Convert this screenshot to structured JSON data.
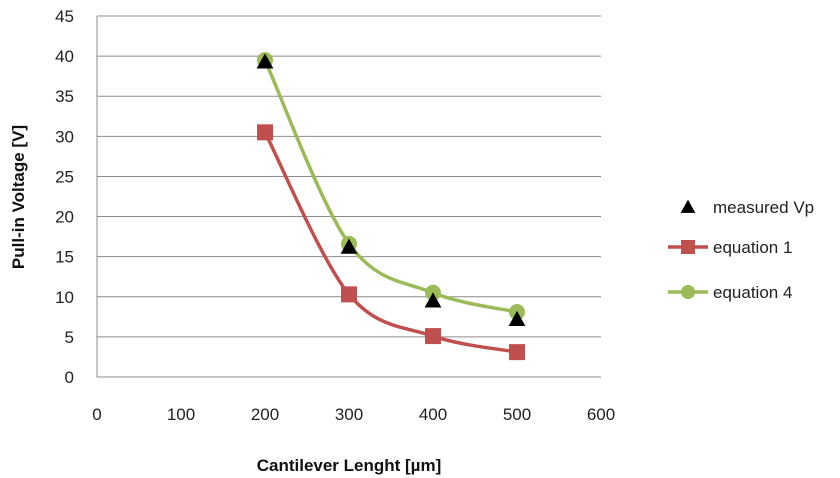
{
  "chart_data": {
    "type": "line",
    "title": "",
    "xlabel": "Cantilever Lenght [µm]",
    "ylabel": "Pull-in Voltage [V]",
    "xlim": [
      0,
      600
    ],
    "ylim": [
      0,
      45
    ],
    "x_ticks": [
      0,
      100,
      200,
      300,
      400,
      500,
      600
    ],
    "y_ticks": [
      0,
      5,
      10,
      15,
      20,
      25,
      30,
      35,
      40,
      45
    ],
    "grid": "horizontal",
    "legend_position": "right",
    "series": [
      {
        "name": "measured Vp",
        "style": "markers",
        "marker": "triangle",
        "color": "#000000",
        "points": [
          [
            200,
            39.3
          ],
          [
            300,
            16.2
          ],
          [
            400,
            9.5
          ],
          [
            500,
            7.2
          ]
        ]
      },
      {
        "name": "equation 1",
        "style": "smooth-line",
        "marker": "square",
        "color": "#c0504d",
        "points": [
          [
            200,
            30.5
          ],
          [
            300,
            10.3
          ],
          [
            400,
            5.1
          ],
          [
            500,
            3.1
          ]
        ]
      },
      {
        "name": "equation 4",
        "style": "smooth-line",
        "marker": "circle",
        "color": "#9bbb59",
        "points": [
          [
            200,
            39.5
          ],
          [
            300,
            16.6
          ],
          [
            400,
            10.5
          ],
          [
            500,
            8.1
          ]
        ]
      }
    ]
  }
}
